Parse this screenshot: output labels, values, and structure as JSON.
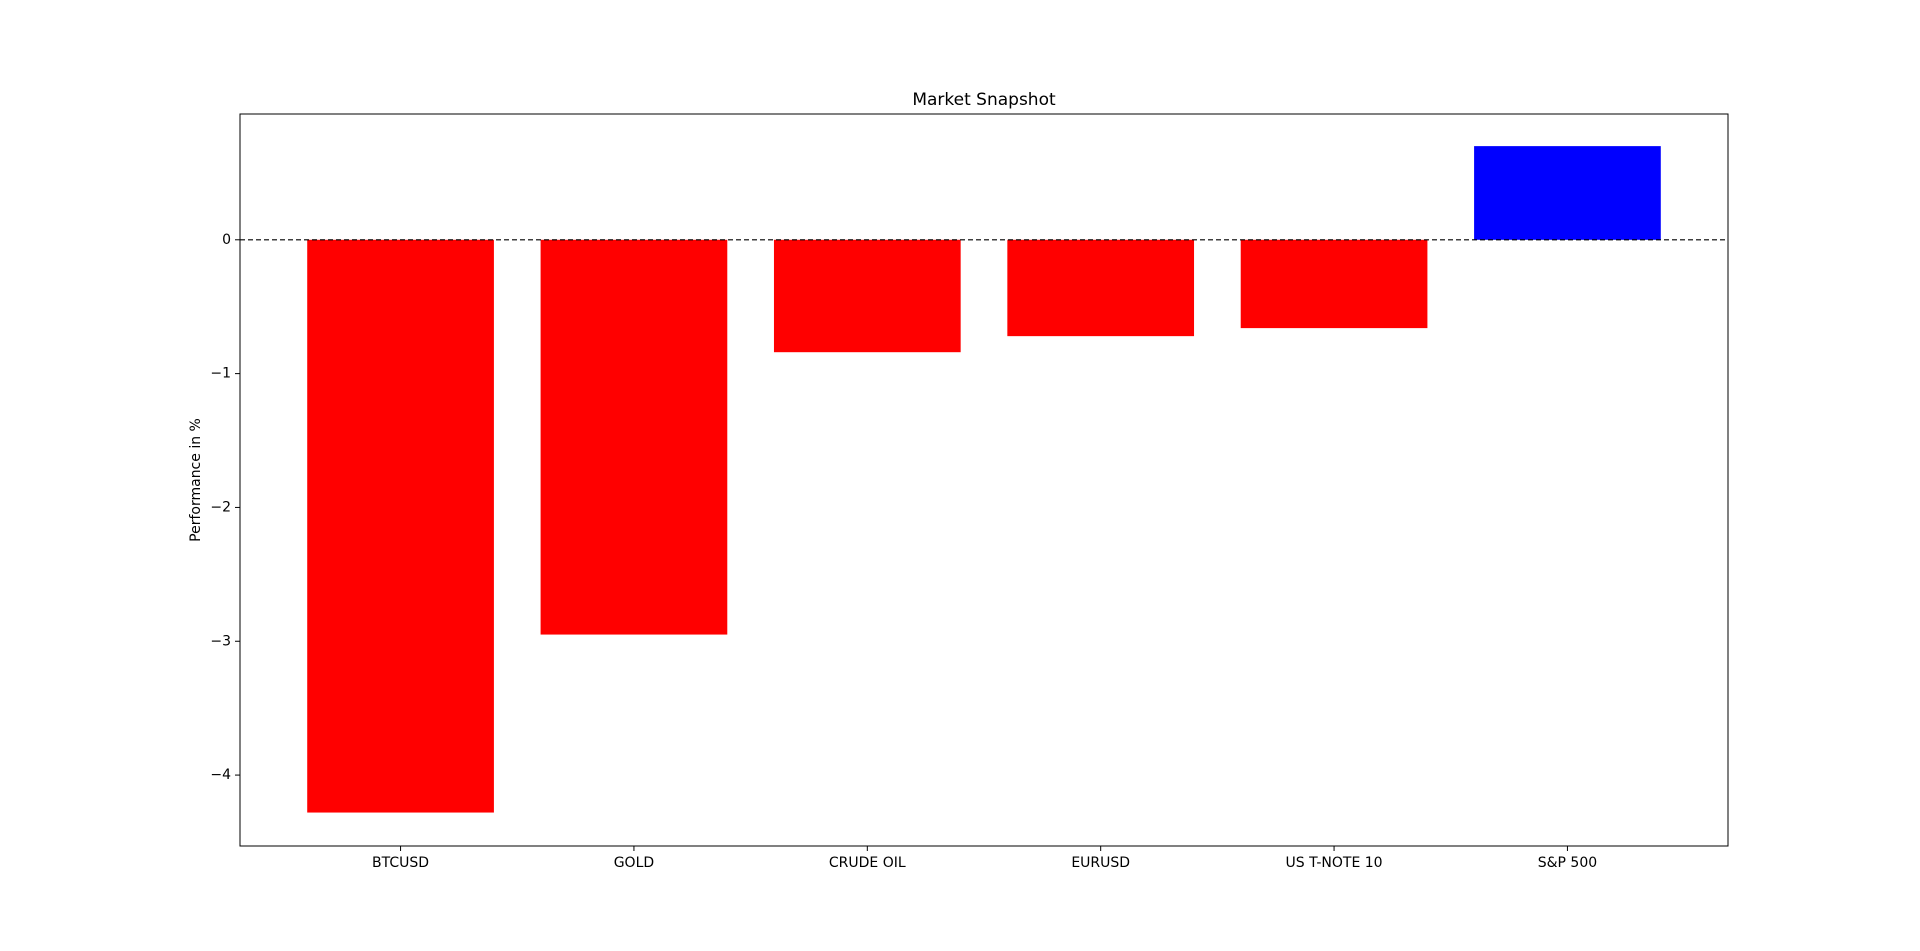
{
  "chart_data": {
    "type": "bar",
    "title": "Market Snapshot",
    "ylabel": "Performance in %",
    "categories": [
      "BTCUSD",
      "GOLD",
      "CRUDE OIL",
      "EURUSD",
      "US T-NOTE 10",
      "S&P 500"
    ],
    "values": [
      -4.28,
      -2.95,
      -0.84,
      -0.72,
      -0.66,
      0.7
    ],
    "colors": [
      "#ff0000",
      "#ff0000",
      "#ff0000",
      "#ff0000",
      "#ff0000",
      "#0000ff"
    ],
    "ylim": [
      -4.53,
      0.94
    ],
    "yticks": [
      {
        "value": -4,
        "label": "−4"
      },
      {
        "value": -3,
        "label": "−3"
      },
      {
        "value": -2,
        "label": "−2"
      },
      {
        "value": -1,
        "label": "−1"
      },
      0
    ],
    "zero_line": true
  }
}
